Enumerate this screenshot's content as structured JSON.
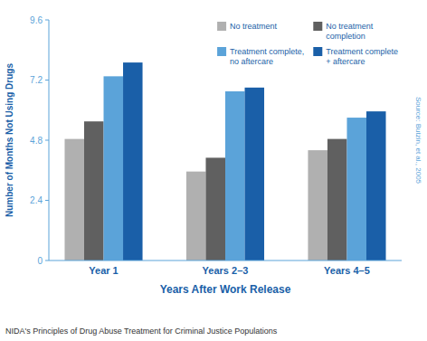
{
  "chart_data": {
    "type": "bar",
    "categories": [
      "Year 1",
      "Years 2–3",
      "Years 4–5"
    ],
    "series": [
      {
        "name": "No treatment",
        "color": "#b0b0b0",
        "values": [
          4.85,
          3.55,
          4.4
        ]
      },
      {
        "name": "No treatment\ncompletion",
        "color": "#606060",
        "values": [
          5.55,
          4.1,
          4.85
        ]
      },
      {
        "name": "Treatment complete,\nno aftercare",
        "color": "#5ba3d9",
        "values": [
          7.35,
          6.75,
          5.7
        ]
      },
      {
        "name": "Treatment complete\n+ aftercare",
        "color": "#1a5fa8",
        "values": [
          7.9,
          6.9,
          5.95
        ]
      }
    ],
    "ylim": [
      0,
      9.6
    ],
    "yticks": [
      0,
      2.4,
      4.8,
      7.2,
      9.6
    ],
    "ylabel": "Number of Months Not Using Drugs",
    "xlabel": "Years After Work Release",
    "annotations": [
      "NIDA's Principles of Drug Abuse Treatment for Criminal Justice Populations",
      "Source: Butzin, et al., 2005"
    ],
    "legend": "upper right",
    "grid": false
  }
}
